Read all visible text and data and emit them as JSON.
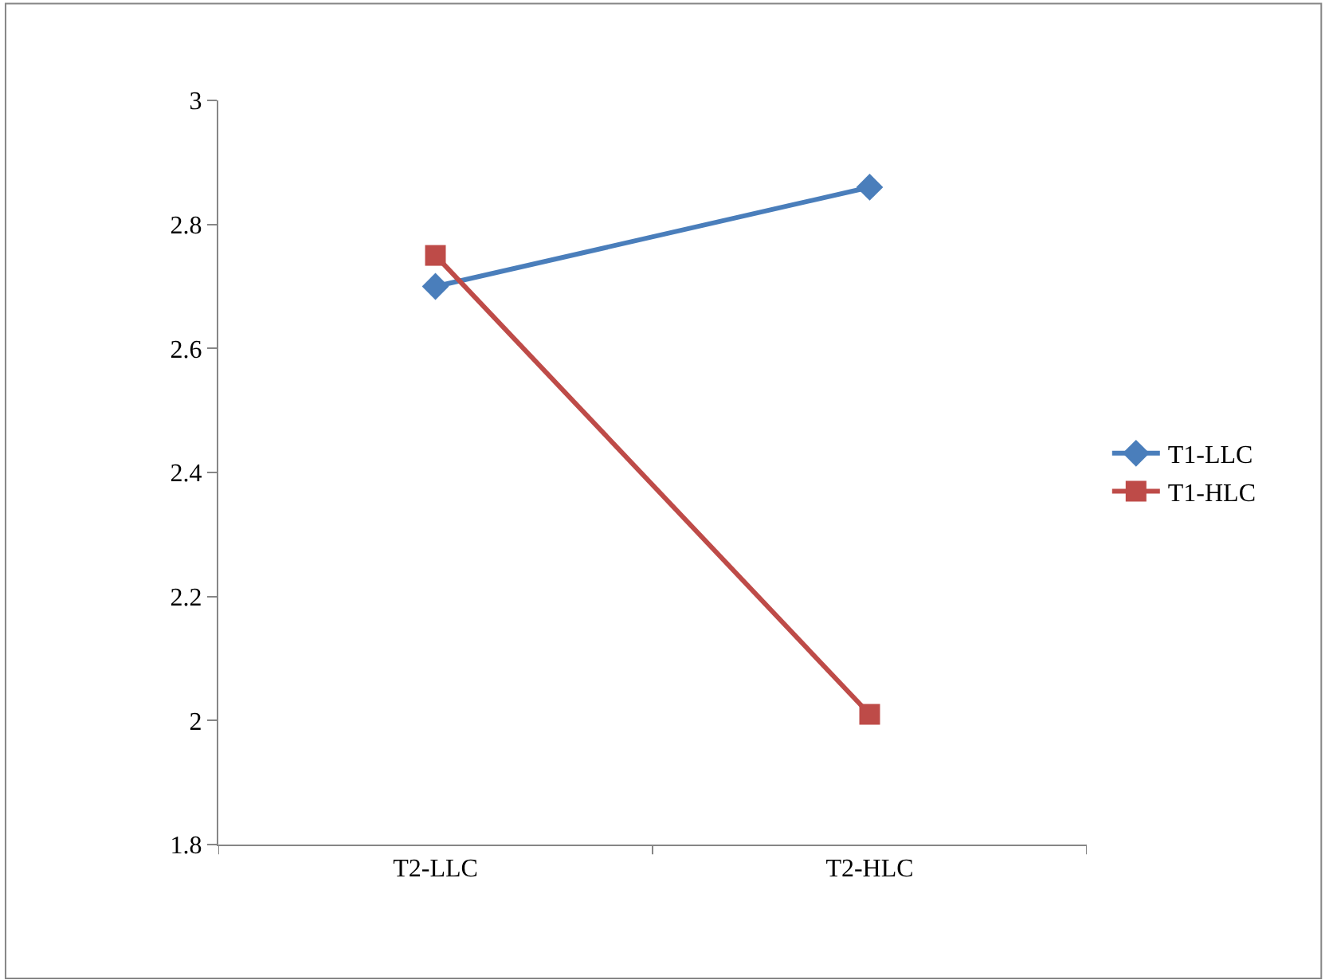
{
  "chart_data": {
    "type": "line",
    "categories": [
      "T2-LLC",
      "T2-HLC"
    ],
    "series": [
      {
        "name": "T1-LLC",
        "color": "#4a7ebb",
        "marker": "diamond",
        "values": [
          2.7,
          2.86
        ]
      },
      {
        "name": "T1-HLC",
        "color": "#be4b48",
        "marker": "square",
        "values": [
          2.75,
          2.01
        ]
      }
    ],
    "ylim": [
      1.8,
      3
    ],
    "yticks": [
      1.8,
      2,
      2.2,
      2.4,
      2.6,
      2.8,
      3
    ],
    "grid": false,
    "legend": "right"
  }
}
